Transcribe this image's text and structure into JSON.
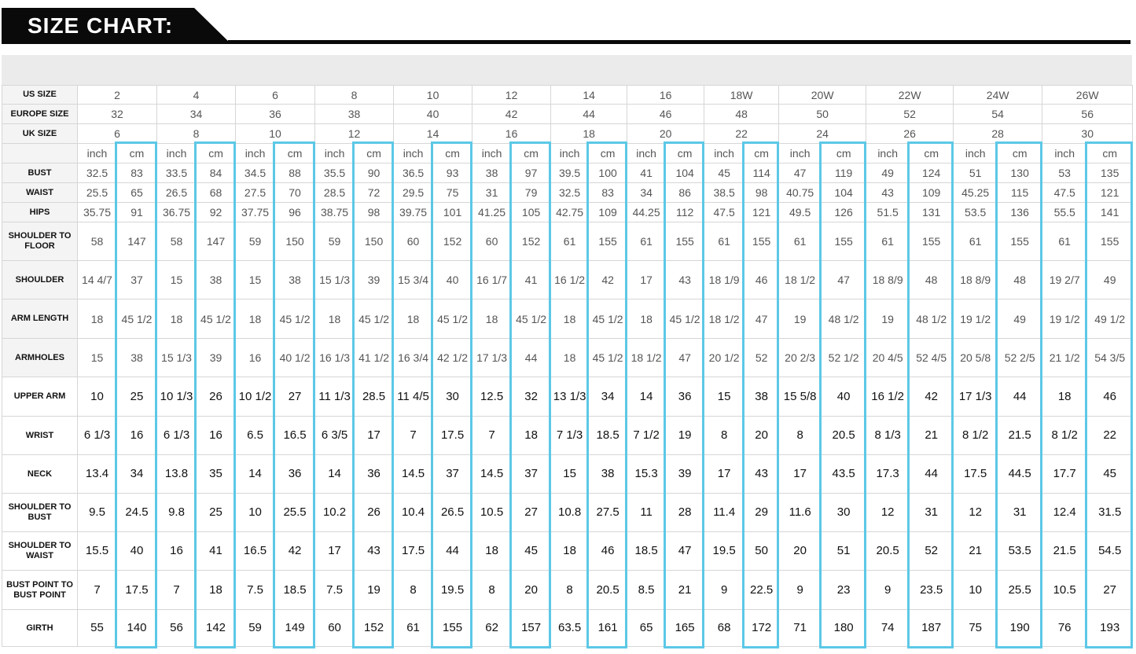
{
  "header": {
    "title": "SIZE CHART:"
  },
  "colors": {
    "header_bg": "#0a0a0a",
    "cm_highlight": "#5cc8e6",
    "grey_bar": "#ebebeb"
  },
  "size_rows": [
    {
      "label": "US SIZE",
      "values": [
        "2",
        "4",
        "6",
        "8",
        "10",
        "12",
        "14",
        "16",
        "18W",
        "20W",
        "22W",
        "24W",
        "26W"
      ]
    },
    {
      "label": "EUROPE SIZE",
      "values": [
        "32",
        "34",
        "36",
        "38",
        "40",
        "42",
        "44",
        "46",
        "48",
        "50",
        "52",
        "54",
        "56"
      ]
    },
    {
      "label": "UK SIZE",
      "values": [
        "6",
        "8",
        "10",
        "12",
        "14",
        "16",
        "18",
        "20",
        "22",
        "24",
        "26",
        "28",
        "30"
      ]
    }
  ],
  "unit_labels": {
    "inch": "inch",
    "cm": "cm"
  },
  "measure_rows": [
    {
      "label": "BUST",
      "values": [
        "32.5",
        "83",
        "33.5",
        "84",
        "34.5",
        "88",
        "35.5",
        "90",
        "36.5",
        "93",
        "38",
        "97",
        "39.5",
        "100",
        "41",
        "104",
        "45",
        "114",
        "47",
        "119",
        "49",
        "124",
        "51",
        "130",
        "53",
        "135"
      ]
    },
    {
      "label": "WAIST",
      "values": [
        "25.5",
        "65",
        "26.5",
        "68",
        "27.5",
        "70",
        "28.5",
        "72",
        "29.5",
        "75",
        "31",
        "79",
        "32.5",
        "83",
        "34",
        "86",
        "38.5",
        "98",
        "40.75",
        "104",
        "43",
        "109",
        "45.25",
        "115",
        "47.5",
        "121"
      ]
    },
    {
      "label": "HIPS",
      "values": [
        "35.75",
        "91",
        "36.75",
        "92",
        "37.75",
        "96",
        "38.75",
        "98",
        "39.75",
        "101",
        "41.25",
        "105",
        "42.75",
        "109",
        "44.25",
        "112",
        "47.5",
        "121",
        "49.5",
        "126",
        "51.5",
        "131",
        "53.5",
        "136",
        "55.5",
        "141"
      ]
    },
    {
      "label": "SHOULDER TO FLOOR",
      "values": [
        "58",
        "147",
        "58",
        "147",
        "59",
        "150",
        "59",
        "150",
        "60",
        "152",
        "60",
        "152",
        "61",
        "155",
        "61",
        "155",
        "61",
        "155",
        "61",
        "155",
        "61",
        "155",
        "61",
        "155",
        "61",
        "155"
      ]
    },
    {
      "label": "SHOULDER",
      "values": [
        "14 4/7",
        "37",
        "15",
        "38",
        "15",
        "38",
        "15 1/3",
        "39",
        "15 3/4",
        "40",
        "16 1/7",
        "41",
        "16 1/2",
        "42",
        "17",
        "43",
        "18 1/9",
        "46",
        "18 1/2",
        "47",
        "18 8/9",
        "48",
        "18 8/9",
        "48",
        "19 2/7",
        "49"
      ]
    },
    {
      "label": "ARM LENGTH",
      "values": [
        "18",
        "45 1/2",
        "18",
        "45 1/2",
        "18",
        "45 1/2",
        "18",
        "45 1/2",
        "18",
        "45 1/2",
        "18",
        "45 1/2",
        "18",
        "45 1/2",
        "18",
        "45 1/2",
        "18 1/2",
        "47",
        "19",
        "48 1/2",
        "19",
        "48 1/2",
        "19 1/2",
        "49",
        "19 1/2",
        "49 1/2"
      ]
    },
    {
      "label": "ARMHOLES",
      "values": [
        "15",
        "38",
        "15 1/3",
        "39",
        "16",
        "40 1/2",
        "16 1/3",
        "41 1/2",
        "16 3/4",
        "42 1/2",
        "17 1/3",
        "44",
        "18",
        "45 1/2",
        "18 1/2",
        "47",
        "20 1/2",
        "52",
        "20 2/3",
        "52 1/2",
        "20 4/5",
        "52 4/5",
        "20 5/8",
        "52 2/5",
        "21 1/2",
        "54 3/5"
      ]
    },
    {
      "label": "UPPER ARM",
      "values": [
        "10",
        "25",
        "10 1/3",
        "26",
        "10 1/2",
        "27",
        "11 1/3",
        "28.5",
        "11 4/5",
        "30",
        "12.5",
        "32",
        "13 1/3",
        "34",
        "14",
        "36",
        "15",
        "38",
        "15 5/8",
        "40",
        "16 1/2",
        "42",
        "17 1/3",
        "44",
        "18",
        "46"
      ]
    },
    {
      "label": "WRIST",
      "values": [
        "6 1/3",
        "16",
        "6 1/3",
        "16",
        "6.5",
        "16.5",
        "6 3/5",
        "17",
        "7",
        "17.5",
        "7",
        "18",
        "7 1/3",
        "18.5",
        "7 1/2",
        "19",
        "8",
        "20",
        "8",
        "20.5",
        "8 1/3",
        "21",
        "8 1/2",
        "21.5",
        "8 1/2",
        "22"
      ]
    },
    {
      "label": "NECK",
      "values": [
        "13.4",
        "34",
        "13.8",
        "35",
        "14",
        "36",
        "14",
        "36",
        "14.5",
        "37",
        "14.5",
        "37",
        "15",
        "38",
        "15.3",
        "39",
        "17",
        "43",
        "17",
        "43.5",
        "17.3",
        "44",
        "17.5",
        "44.5",
        "17.7",
        "45"
      ]
    },
    {
      "label": "SHOULDER TO BUST",
      "values": [
        "9.5",
        "24.5",
        "9.8",
        "25",
        "10",
        "25.5",
        "10.2",
        "26",
        "10.4",
        "26.5",
        "10.5",
        "27",
        "10.8",
        "27.5",
        "11",
        "28",
        "11.4",
        "29",
        "11.6",
        "30",
        "12",
        "31",
        "12",
        "31",
        "12.4",
        "31.5"
      ]
    },
    {
      "label": "SHOULDER TO WAIST",
      "values": [
        "15.5",
        "40",
        "16",
        "41",
        "16.5",
        "42",
        "17",
        "43",
        "17.5",
        "44",
        "18",
        "45",
        "18",
        "46",
        "18.5",
        "47",
        "19.5",
        "50",
        "20",
        "51",
        "20.5",
        "52",
        "21",
        "53.5",
        "21.5",
        "54.5"
      ]
    },
    {
      "label": "BUST POINT TO BUST POINT",
      "values": [
        "7",
        "17.5",
        "7",
        "18",
        "7.5",
        "18.5",
        "7.5",
        "19",
        "8",
        "19.5",
        "8",
        "20",
        "8",
        "20.5",
        "8.5",
        "21",
        "9",
        "22.5",
        "9",
        "23",
        "9",
        "23.5",
        "10",
        "25.5",
        "10.5",
        "27"
      ]
    },
    {
      "label": "GIRTH",
      "values": [
        "55",
        "140",
        "56",
        "142",
        "59",
        "149",
        "60",
        "152",
        "61",
        "155",
        "62",
        "157",
        "63.5",
        "161",
        "65",
        "165",
        "68",
        "172",
        "71",
        "180",
        "74",
        "187",
        "75",
        "190",
        "76",
        "193"
      ]
    }
  ]
}
